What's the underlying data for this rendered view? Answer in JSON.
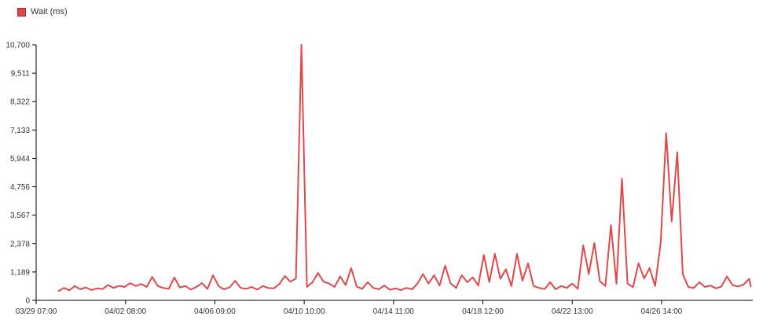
{
  "chart_data": {
    "type": "line",
    "legend": {
      "position": "top-left"
    },
    "series": [
      {
        "name": "Wait (ms)",
        "color": "#e04848",
        "values": [
          [
            "03/30 07:00",
            380
          ],
          [
            "03/30 13:00",
            520
          ],
          [
            "03/30 19:00",
            420
          ],
          [
            "03/31 01:00",
            600
          ],
          [
            "03/31 07:00",
            460
          ],
          [
            "03/31 13:00",
            540
          ],
          [
            "03/31 19:00",
            430
          ],
          [
            "04/01 01:00",
            500
          ],
          [
            "04/01 07:00",
            470
          ],
          [
            "04/01 13:00",
            640
          ],
          [
            "04/01 19:00",
            520
          ],
          [
            "04/02 01:00",
            610
          ],
          [
            "04/02 07:00",
            560
          ],
          [
            "04/02 13:00",
            720
          ],
          [
            "04/02 19:00",
            600
          ],
          [
            "04/03 01:00",
            680
          ],
          [
            "04/03 07:00",
            560
          ],
          [
            "04/03 13:00",
            980
          ],
          [
            "04/03 19:00",
            600
          ],
          [
            "04/04 01:00",
            520
          ],
          [
            "04/04 07:00",
            480
          ],
          [
            "04/04 13:00",
            960
          ],
          [
            "04/04 19:00",
            540
          ],
          [
            "04/05 01:00",
            600
          ],
          [
            "04/05 07:00",
            450
          ],
          [
            "04/05 13:00",
            560
          ],
          [
            "04/05 19:00",
            720
          ],
          [
            "04/06 01:00",
            480
          ],
          [
            "04/06 07:00",
            1050
          ],
          [
            "04/06 13:00",
            600
          ],
          [
            "04/06 19:00",
            460
          ],
          [
            "04/07 01:00",
            540
          ],
          [
            "04/07 07:00",
            820
          ],
          [
            "04/07 13:00",
            520
          ],
          [
            "04/07 19:00",
            480
          ],
          [
            "04/08 01:00",
            560
          ],
          [
            "04/08 07:00",
            450
          ],
          [
            "04/08 13:00",
            600
          ],
          [
            "04/08 19:00",
            520
          ],
          [
            "04/09 01:00",
            500
          ],
          [
            "04/09 07:00",
            680
          ],
          [
            "04/09 13:00",
            1020
          ],
          [
            "04/09 19:00",
            780
          ],
          [
            "04/10 01:00",
            920
          ],
          [
            "04/10 07:00",
            10700
          ],
          [
            "04/10 13:00",
            560
          ],
          [
            "04/10 19:00",
            760
          ],
          [
            "04/11 01:00",
            1150
          ],
          [
            "04/11 07:00",
            780
          ],
          [
            "04/11 13:00",
            700
          ],
          [
            "04/11 19:00",
            560
          ],
          [
            "04/12 01:00",
            1000
          ],
          [
            "04/12 07:00",
            640
          ],
          [
            "04/12 13:00",
            1350
          ],
          [
            "04/12 19:00",
            580
          ],
          [
            "04/13 01:00",
            480
          ],
          [
            "04/13 07:00",
            760
          ],
          [
            "04/13 13:00",
            520
          ],
          [
            "04/13 19:00",
            460
          ],
          [
            "04/14 01:00",
            620
          ],
          [
            "04/14 07:00",
            440
          ],
          [
            "04/14 13:00",
            500
          ],
          [
            "04/14 19:00",
            430
          ],
          [
            "04/15 01:00",
            520
          ],
          [
            "04/15 07:00",
            460
          ],
          [
            "04/15 13:00",
            700
          ],
          [
            "04/15 19:00",
            1100
          ],
          [
            "04/16 01:00",
            700
          ],
          [
            "04/16 07:00",
            1050
          ],
          [
            "04/16 13:00",
            620
          ],
          [
            "04/16 19:00",
            1450
          ],
          [
            "04/17 01:00",
            700
          ],
          [
            "04/17 07:00",
            520
          ],
          [
            "04/17 13:00",
            1050
          ],
          [
            "04/17 19:00",
            760
          ],
          [
            "04/18 01:00",
            960
          ],
          [
            "04/18 07:00",
            620
          ],
          [
            "04/18 13:00",
            1900
          ],
          [
            "04/18 19:00",
            760
          ],
          [
            "04/19 01:00",
            1950
          ],
          [
            "04/19 07:00",
            900
          ],
          [
            "04/19 13:00",
            1300
          ],
          [
            "04/19 19:00",
            600
          ],
          [
            "04/20 01:00",
            1950
          ],
          [
            "04/20 07:00",
            820
          ],
          [
            "04/20 13:00",
            1550
          ],
          [
            "04/20 19:00",
            600
          ],
          [
            "04/21 01:00",
            520
          ],
          [
            "04/21 07:00",
            470
          ],
          [
            "04/21 13:00",
            760
          ],
          [
            "04/21 19:00",
            460
          ],
          [
            "04/22 01:00",
            600
          ],
          [
            "04/22 07:00",
            520
          ],
          [
            "04/22 13:00",
            700
          ],
          [
            "04/22 19:00",
            480
          ],
          [
            "04/23 01:00",
            2300
          ],
          [
            "04/23 07:00",
            1100
          ],
          [
            "04/23 13:00",
            2400
          ],
          [
            "04/23 19:00",
            800
          ],
          [
            "04/24 01:00",
            600
          ],
          [
            "04/24 07:00",
            3150
          ],
          [
            "04/24 13:00",
            700
          ],
          [
            "04/24 19:00",
            5100
          ],
          [
            "04/25 01:00",
            700
          ],
          [
            "04/25 07:00",
            550
          ],
          [
            "04/25 13:00",
            1550
          ],
          [
            "04/25 19:00",
            920
          ],
          [
            "04/26 01:00",
            1350
          ],
          [
            "04/26 07:00",
            600
          ],
          [
            "04/26 13:00",
            2400
          ],
          [
            "04/26 19:00",
            7000
          ],
          [
            "04/27 01:00",
            3300
          ],
          [
            "04/27 07:00",
            6200
          ],
          [
            "04/27 13:00",
            1100
          ],
          [
            "04/27 19:00",
            560
          ],
          [
            "04/28 01:00",
            520
          ],
          [
            "04/28 07:00",
            760
          ],
          [
            "04/28 13:00",
            560
          ],
          [
            "04/28 19:00",
            620
          ],
          [
            "04/29 01:00",
            500
          ],
          [
            "04/29 07:00",
            580
          ],
          [
            "04/29 13:00",
            1000
          ],
          [
            "04/29 19:00",
            640
          ],
          [
            "04/30 01:00",
            580
          ],
          [
            "04/30 07:00",
            660
          ],
          [
            "04/30 13:00",
            900
          ],
          [
            "04/30 15:00",
            560
          ]
        ]
      }
    ],
    "y_ticks": [
      "0",
      "1,189",
      "2,378",
      "3,567",
      "4,756",
      "5,944",
      "7,133",
      "8,322",
      "9,511",
      "10,700"
    ],
    "y_tick_values": [
      0,
      1189,
      2378,
      3567,
      4756,
      5944,
      7133,
      8322,
      9511,
      10700
    ],
    "ylim": [
      0,
      10700
    ],
    "x_ticks": [
      "03/29 07:00",
      "04/02 08:00",
      "04/06 09:00",
      "04/10 10:00",
      "04/14 11:00",
      "04/18 12:00",
      "04/22 13:00",
      "04/26 14:00"
    ],
    "xlim": [
      "03/29 07:00",
      "04/30 17:00"
    ],
    "grid": false
  }
}
